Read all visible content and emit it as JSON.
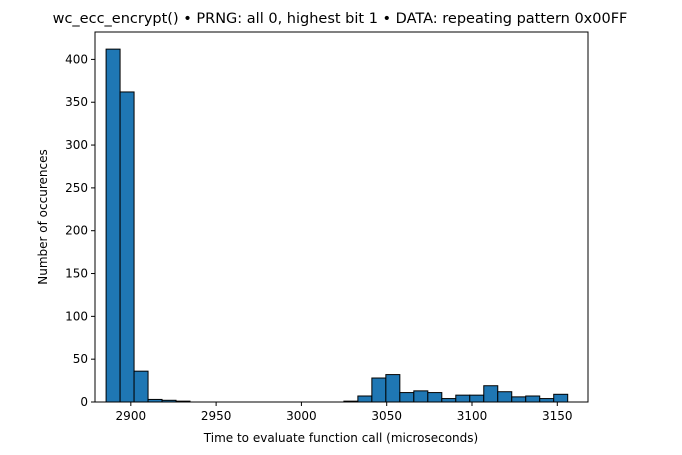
{
  "chart_data": {
    "type": "bar",
    "title": "wc_ecc_encrypt() • PRNG: all 0, highest bit 1 • DATA: repeating pattern 0x00FF",
    "xlabel": "Time to evaluate function call (microseconds)",
    "ylabel": "Number of occurences",
    "xlim": [
      2879,
      3168
    ],
    "ylim": [
      0,
      432
    ],
    "xticks": [
      2900,
      2950,
      3000,
      3050,
      3100,
      3150
    ],
    "yticks": [
      0,
      50,
      100,
      150,
      200,
      250,
      300,
      350,
      400
    ],
    "bin_start": 2885.5,
    "bin_width": 8.2,
    "values": [
      412,
      362,
      36,
      3,
      2,
      1,
      0,
      0,
      0,
      0,
      0,
      0,
      0,
      0,
      0,
      0,
      0,
      1,
      7,
      28,
      32,
      11,
      13,
      11,
      4,
      8,
      8,
      19,
      12,
      6,
      7,
      4,
      9
    ],
    "bar_color": "#1f77b4",
    "edge_color": "#000000",
    "grid": false
  }
}
